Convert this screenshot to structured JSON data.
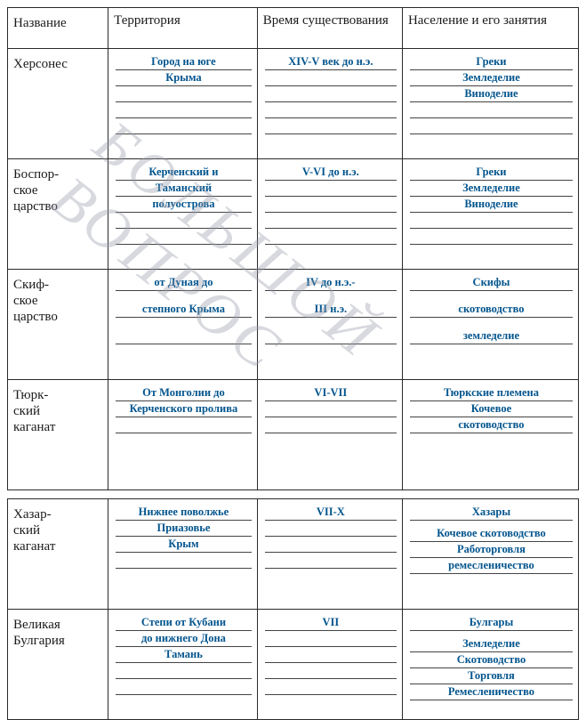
{
  "watermark": "БОЛЬШОЙ ВОПРОС",
  "headers": {
    "name": "Название",
    "territory": "Территория",
    "time": "Время существования",
    "population": "Население и его занятия"
  },
  "rows": [
    {
      "name": "Херсонес",
      "territory": [
        "Город на юге",
        "Крыма",
        "",
        "",
        ""
      ],
      "time": [
        "XIV-V век до н.э.",
        "",
        "",
        "",
        ""
      ],
      "population": [
        "Греки",
        "Земледелие",
        "Виноделие",
        "",
        ""
      ]
    },
    {
      "name": "Боспор-ское царство",
      "territory": [
        "Керченский и",
        "Таманский",
        "полуострова",
        "",
        ""
      ],
      "time": [
        "V-VI до н.э.",
        "",
        "",
        "",
        ""
      ],
      "population": [
        "Греки",
        "Земледелие",
        "Виноделие",
        "",
        ""
      ]
    },
    {
      "name": "Скиф-ское царство",
      "territory": [
        "от Дуная до",
        "степного Крыма",
        ""
      ],
      "time": [
        "IV до н.э.-",
        "III н.э.",
        ""
      ],
      "population": [
        "Скифы",
        "скотоводство",
        "земледелие"
      ],
      "spaced": true
    },
    {
      "name": "Тюрк-ский каганат",
      "territory": [
        "От Монголии до",
        "Керченского пролива",
        ""
      ],
      "time": [
        "VI-VII",
        "",
        ""
      ],
      "population": [
        "Тюркские племена",
        "Кочевое",
        "скотоводство"
      ],
      "shortcell": true
    },
    {
      "gap": true
    },
    {
      "name": "Хазар-ский каганат",
      "territory": [
        "Нижнее поволжье",
        "Приазовье",
        "Крым",
        ""
      ],
      "time": [
        "VII-X",
        "",
        "",
        ""
      ],
      "population": [
        "Хазары",
        "",
        "Кочевое скотоводство",
        "Работорговля",
        "ремесленичество"
      ]
    },
    {
      "name": "Великая Булгария",
      "territory": [
        "Степи от Кубани",
        "до нижнего Дона",
        "Тамань",
        "",
        ""
      ],
      "time": [
        "VII",
        "",
        "",
        "",
        ""
      ],
      "population": [
        "Булгары",
        "",
        "Земледелие",
        "Скотоводство",
        "Торговля",
        "Ремесленичество"
      ]
    }
  ]
}
